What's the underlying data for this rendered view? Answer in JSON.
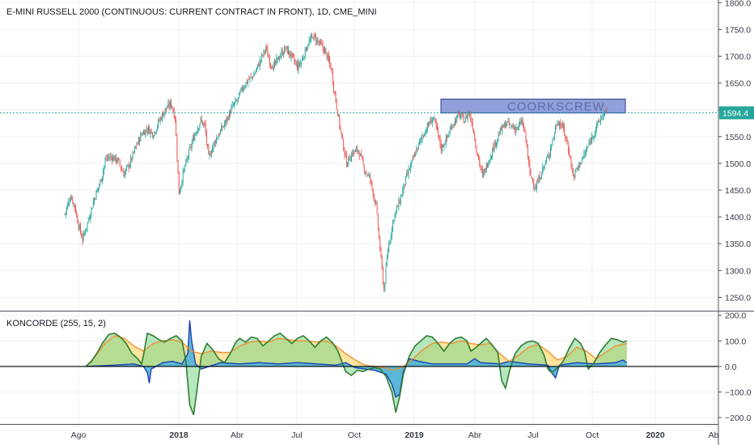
{
  "header": {
    "title": "E-MINI RUSSELL 2000 (CONTINUOUS: CURRENT CONTRACT IN FRONT), 1D, CME_MINI"
  },
  "indicator": {
    "title": "KONCORDE (255, 15, 2)"
  },
  "current_price": "1594.4",
  "annotation": "COORKSCREW",
  "colors": {
    "up": "#26a69a",
    "down": "#ef5350",
    "price_line": "#26a69a",
    "zone_fill": "#7e8ed4",
    "zone_border": "#2f3e99",
    "koncorde_yellow": "#fde39a",
    "koncorde_green": "#2e7d32",
    "koncorde_blue": "#1e40af",
    "koncorde_orange": "#f28c28"
  },
  "chart_data": [
    {
      "type": "candlestick",
      "title": "E-MINI RUSSELL 2000 (CONTINUOUS: CURRENT CONTRACT IN FRONT), 1D, CME_MINI",
      "x_ticks": [
        "Ago",
        "2018",
        "Abr",
        "Jul",
        "Oct",
        "2019",
        "Abr",
        "Jul",
        "Oct",
        "2020",
        "Ab"
      ],
      "bold_ticks": [
        "2018",
        "2019",
        "2020"
      ],
      "y_ticks": [
        "1800.0",
        "1750.0",
        "1700.0",
        "1650.0",
        "1600.0",
        "1550.0",
        "1500.0",
        "1450.0",
        "1400.0",
        "1350.0",
        "1300.0",
        "1250.0"
      ],
      "ylim": [
        1225,
        1805
      ],
      "grid": true,
      "last_price": 1594.4,
      "zone": {
        "label": "COORKSCREW",
        "low": 1594,
        "high": 1620,
        "from": "2019-02",
        "to": "2019-11"
      },
      "close_path": [
        [
          0,
          1405
        ],
        [
          6,
          1440
        ],
        [
          10,
          1420
        ],
        [
          14,
          1385
        ],
        [
          18,
          1358
        ],
        [
          24,
          1395
        ],
        [
          30,
          1435
        ],
        [
          36,
          1465
        ],
        [
          42,
          1510
        ],
        [
          48,
          1512
        ],
        [
          54,
          1505
        ],
        [
          60,
          1480
        ],
        [
          66,
          1500
        ],
        [
          72,
          1530
        ],
        [
          78,
          1555
        ],
        [
          84,
          1565
        ],
        [
          90,
          1555
        ],
        [
          96,
          1580
        ],
        [
          102,
          1600
        ],
        [
          108,
          1612
        ],
        [
          112,
          1585
        ],
        [
          116,
          1445
        ],
        [
          120,
          1480
        ],
        [
          126,
          1520
        ],
        [
          132,
          1555
        ],
        [
          138,
          1580
        ],
        [
          142,
          1570
        ],
        [
          146,
          1510
        ],
        [
          152,
          1540
        ],
        [
          158,
          1560
        ],
        [
          164,
          1580
        ],
        [
          170,
          1605
        ],
        [
          176,
          1620
        ],
        [
          180,
          1640
        ],
        [
          186,
          1655
        ],
        [
          192,
          1665
        ],
        [
          198,
          1690
        ],
        [
          204,
          1715
        ],
        [
          208,
          1690
        ],
        [
          212,
          1680
        ],
        [
          218,
          1700
        ],
        [
          224,
          1715
        ],
        [
          230,
          1700
        ],
        [
          236,
          1680
        ],
        [
          240,
          1690
        ],
        [
          246,
          1720
        ],
        [
          252,
          1738
        ],
        [
          258,
          1725
        ],
        [
          264,
          1710
        ],
        [
          270,
          1680
        ],
        [
          274,
          1630
        ],
        [
          280,
          1560
        ],
        [
          286,
          1500
        ],
        [
          292,
          1520
        ],
        [
          298,
          1525
        ],
        [
          304,
          1490
        ],
        [
          310,
          1470
        ],
        [
          316,
          1420
        ],
        [
          320,
          1340
        ],
        [
          324,
          1262
        ],
        [
          328,
          1340
        ],
        [
          334,
          1400
        ],
        [
          340,
          1430
        ],
        [
          346,
          1470
        ],
        [
          352,
          1500
        ],
        [
          358,
          1530
        ],
        [
          364,
          1555
        ],
        [
          370,
          1575
        ],
        [
          374,
          1585
        ],
        [
          378,
          1560
        ],
        [
          382,
          1528
        ],
        [
          388,
          1548
        ],
        [
          394,
          1575
        ],
        [
          400,
          1590
        ],
        [
          406,
          1580
        ],
        [
          410,
          1596
        ],
        [
          414,
          1570
        ],
        [
          418,
          1525
        ],
        [
          424,
          1475
        ],
        [
          430,
          1505
        ],
        [
          436,
          1535
        ],
        [
          442,
          1560
        ],
        [
          448,
          1575
        ],
        [
          454,
          1568
        ],
        [
          460,
          1565
        ],
        [
          464,
          1580
        ],
        [
          468,
          1545
        ],
        [
          472,
          1480
        ],
        [
          478,
          1455
        ],
        [
          484,
          1485
        ],
        [
          490,
          1510
        ],
        [
          496,
          1550
        ],
        [
          500,
          1580
        ],
        [
          506,
          1565
        ],
        [
          512,
          1520
        ],
        [
          516,
          1475
        ],
        [
          522,
          1498
        ],
        [
          528,
          1518
        ],
        [
          534,
          1545
        ],
        [
          540,
          1570
        ],
        [
          546,
          1590
        ],
        [
          550,
          1594.4
        ]
      ]
    },
    {
      "type": "area",
      "title": "KONCORDE (255, 15, 2)",
      "y_ticks": [
        "200.0",
        "100.0",
        "0.0",
        "−100.0",
        "−200.0"
      ],
      "ylim": [
        -225,
        215
      ],
      "green_path": [
        [
          0,
          0
        ],
        [
          6,
          20
        ],
        [
          12,
          55
        ],
        [
          18,
          95
        ],
        [
          24,
          125
        ],
        [
          30,
          130
        ],
        [
          36,
          115
        ],
        [
          42,
          90
        ],
        [
          48,
          50
        ],
        [
          54,
          30
        ],
        [
          58,
          10
        ],
        [
          60,
          45
        ],
        [
          64,
          130
        ],
        [
          70,
          120
        ],
        [
          76,
          105
        ],
        [
          82,
          95
        ],
        [
          88,
          110
        ],
        [
          94,
          120
        ],
        [
          100,
          100
        ],
        [
          104,
          20
        ],
        [
          108,
          -150
        ],
        [
          112,
          -190
        ],
        [
          116,
          -80
        ],
        [
          120,
          40
        ],
        [
          126,
          90
        ],
        [
          132,
          65
        ],
        [
          138,
          30
        ],
        [
          144,
          15
        ],
        [
          150,
          50
        ],
        [
          156,
          95
        ],
        [
          160,
          110
        ],
        [
          166,
          95
        ],
        [
          172,
          115
        ],
        [
          178,
          110
        ],
        [
          184,
          80
        ],
        [
          190,
          100
        ],
        [
          196,
          120
        ],
        [
          202,
          130
        ],
        [
          208,
          110
        ],
        [
          214,
          90
        ],
        [
          220,
          110
        ],
        [
          226,
          120
        ],
        [
          232,
          100
        ],
        [
          238,
          75
        ],
        [
          244,
          100
        ],
        [
          250,
          115
        ],
        [
          256,
          95
        ],
        [
          262,
          60
        ],
        [
          266,
          20
        ],
        [
          270,
          -20
        ],
        [
          276,
          -35
        ],
        [
          282,
          -15
        ],
        [
          288,
          -20
        ],
        [
          294,
          -10
        ],
        [
          300,
          -5
        ],
        [
          306,
          -10
        ],
        [
          312,
          -40
        ],
        [
          318,
          -100
        ],
        [
          322,
          -180
        ],
        [
          326,
          -120
        ],
        [
          330,
          -30
        ],
        [
          336,
          40
        ],
        [
          342,
          80
        ],
        [
          348,
          100
        ],
        [
          354,
          120
        ],
        [
          360,
          115
        ],
        [
          366,
          90
        ],
        [
          372,
          60
        ],
        [
          378,
          90
        ],
        [
          384,
          110
        ],
        [
          390,
          115
        ],
        [
          396,
          100
        ],
        [
          400,
          60
        ],
        [
          404,
          70
        ],
        [
          410,
          90
        ],
        [
          416,
          110
        ],
        [
          422,
          85
        ],
        [
          428,
          55
        ],
        [
          432,
          -55
        ],
        [
          436,
          -85
        ],
        [
          440,
          -20
        ],
        [
          446,
          50
        ],
        [
          452,
          80
        ],
        [
          458,
          95
        ],
        [
          464,
          100
        ],
        [
          470,
          90
        ],
        [
          476,
          45
        ],
        [
          480,
          -10
        ],
        [
          484,
          -25
        ],
        [
          490,
          -5
        ],
        [
          496,
          20
        ],
        [
          502,
          70
        ],
        [
          508,
          110
        ],
        [
          514,
          90
        ],
        [
          518,
          60
        ],
        [
          522,
          -10
        ],
        [
          528,
          15
        ],
        [
          534,
          55
        ],
        [
          540,
          85
        ],
        [
          546,
          110
        ],
        [
          552,
          105
        ],
        [
          558,
          95
        ],
        [
          562,
          100
        ]
      ],
      "orange_path": [
        [
          0,
          0
        ],
        [
          10,
          40
        ],
        [
          20,
          90
        ],
        [
          30,
          120
        ],
        [
          40,
          110
        ],
        [
          50,
          80
        ],
        [
          60,
          60
        ],
        [
          70,
          90
        ],
        [
          80,
          100
        ],
        [
          90,
          105
        ],
        [
          100,
          95
        ],
        [
          110,
          60
        ],
        [
          120,
          50
        ],
        [
          130,
          60
        ],
        [
          140,
          55
        ],
        [
          150,
          55
        ],
        [
          160,
          80
        ],
        [
          170,
          95
        ],
        [
          180,
          100
        ],
        [
          190,
          95
        ],
        [
          200,
          110
        ],
        [
          210,
          105
        ],
        [
          220,
          100
        ],
        [
          230,
          100
        ],
        [
          240,
          95
        ],
        [
          250,
          100
        ],
        [
          260,
          80
        ],
        [
          270,
          50
        ],
        [
          280,
          25
        ],
        [
          290,
          5
        ],
        [
          300,
          0
        ],
        [
          310,
          -5
        ],
        [
          320,
          -15
        ],
        [
          330,
          0
        ],
        [
          340,
          30
        ],
        [
          350,
          65
        ],
        [
          360,
          90
        ],
        [
          370,
          95
        ],
        [
          380,
          90
        ],
        [
          390,
          100
        ],
        [
          400,
          90
        ],
        [
          410,
          85
        ],
        [
          420,
          90
        ],
        [
          430,
          50
        ],
        [
          440,
          20
        ],
        [
          450,
          45
        ],
        [
          460,
          75
        ],
        [
          470,
          85
        ],
        [
          480,
          60
        ],
        [
          490,
          25
        ],
        [
          500,
          40
        ],
        [
          510,
          75
        ],
        [
          520,
          60
        ],
        [
          530,
          30
        ],
        [
          540,
          55
        ],
        [
          550,
          80
        ],
        [
          562,
          90
        ]
      ],
      "blue_path": [
        [
          0,
          0
        ],
        [
          30,
          5
        ],
        [
          50,
          10
        ],
        [
          60,
          0
        ],
        [
          64,
          -25
        ],
        [
          66,
          -65
        ],
        [
          68,
          -10
        ],
        [
          80,
          15
        ],
        [
          90,
          20
        ],
        [
          100,
          10
        ],
        [
          106,
          50
        ],
        [
          108,
          180
        ],
        [
          110,
          100
        ],
        [
          114,
          10
        ],
        [
          120,
          -10
        ],
        [
          140,
          15
        ],
        [
          160,
          10
        ],
        [
          180,
          15
        ],
        [
          200,
          10
        ],
        [
          220,
          15
        ],
        [
          240,
          10
        ],
        [
          260,
          5
        ],
        [
          270,
          15
        ],
        [
          280,
          -5
        ],
        [
          300,
          -15
        ],
        [
          312,
          -30
        ],
        [
          318,
          -70
        ],
        [
          322,
          -120
        ],
        [
          326,
          -110
        ],
        [
          330,
          -20
        ],
        [
          336,
          30
        ],
        [
          346,
          20
        ],
        [
          360,
          10
        ],
        [
          380,
          10
        ],
        [
          396,
          10
        ],
        [
          404,
          30
        ],
        [
          410,
          15
        ],
        [
          430,
          10
        ],
        [
          440,
          20
        ],
        [
          460,
          10
        ],
        [
          480,
          5
        ],
        [
          484,
          -25
        ],
        [
          488,
          -45
        ],
        [
          492,
          5
        ],
        [
          510,
          15
        ],
        [
          530,
          10
        ],
        [
          550,
          15
        ],
        [
          558,
          25
        ],
        [
          562,
          15
        ]
      ]
    }
  ]
}
